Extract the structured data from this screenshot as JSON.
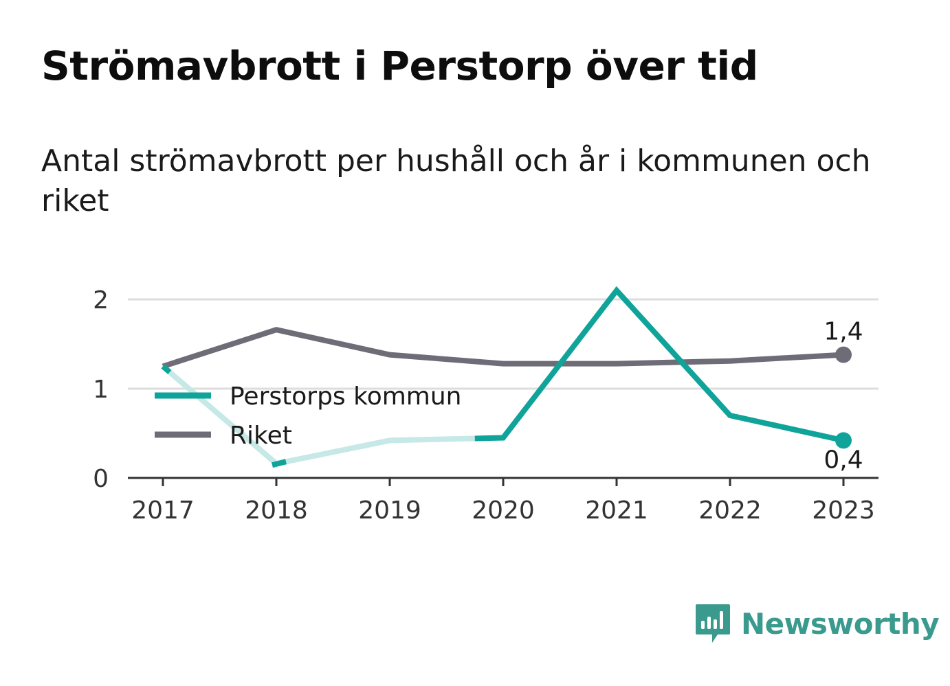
{
  "title": "Strömavbrott i Perstorp över tid",
  "subtitle": "Antal strömavbrott per hushåll och år i kommunen och riket",
  "brand": {
    "name": "Newsworthy",
    "color": "#3a9a8e"
  },
  "chart_data": {
    "type": "line",
    "title": "Strömavbrott i Perstorp över tid",
    "subtitle": "Antal strömavbrott per hushåll och år i kommunen och riket",
    "xlabel": "",
    "ylabel": "",
    "categories": [
      "2017",
      "2018",
      "2019",
      "2020",
      "2021",
      "2022",
      "2023"
    ],
    "ylim": [
      0,
      2.3
    ],
    "yticks": [
      0,
      1,
      2
    ],
    "ytick_labels": [
      "0",
      "1",
      "2"
    ],
    "grid": true,
    "legend_position": "left",
    "series": [
      {
        "name": "Perstorps kommun",
        "color": "#0fa39a",
        "faded_color": "#c6e8e6",
        "values": [
          1.25,
          0.16,
          0.42,
          0.45,
          2.1,
          0.7,
          0.42
        ],
        "faded_until": 2019.75,
        "end_label": "0,4"
      },
      {
        "name": "Riket",
        "color": "#6e6d77",
        "values": [
          1.25,
          1.66,
          1.38,
          1.28,
          1.28,
          1.31,
          1.38
        ],
        "end_label": "1,4"
      }
    ]
  }
}
